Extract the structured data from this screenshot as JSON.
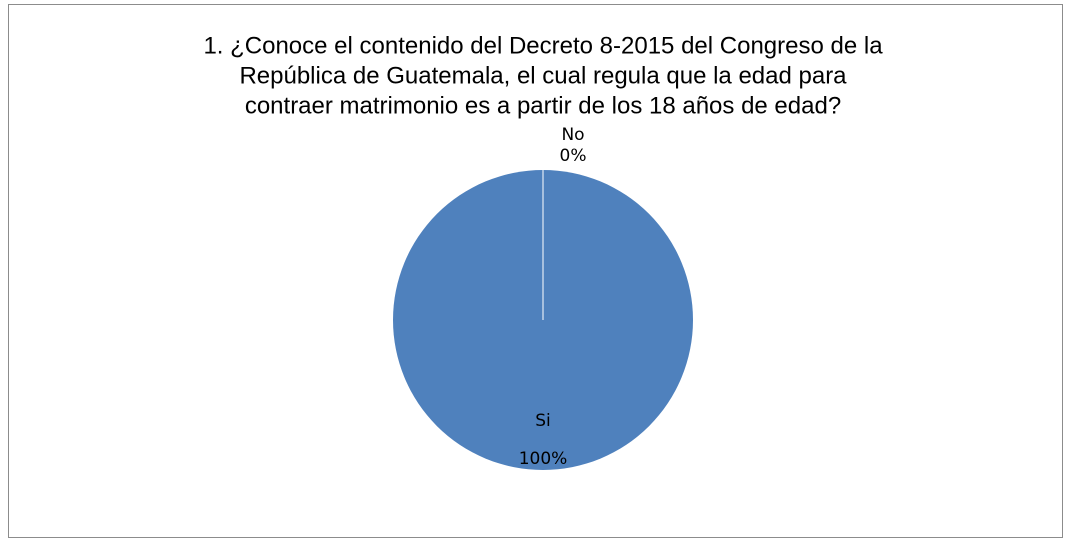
{
  "chart_data": {
    "type": "pie",
    "title": [
      "1. ¿Conoce el contenido del Decreto 8-2015 del Congreso de la",
      "República de Guatemala, el cual regula que la edad para",
      "contraer matrimonio es a partir de los 18 años de edad?"
    ],
    "categories": [
      "Si",
      "No"
    ],
    "values": [
      100,
      0
    ],
    "value_labels": [
      "100%",
      "0%"
    ],
    "colors": [
      "#4f81bd",
      "#c0504d"
    ]
  }
}
